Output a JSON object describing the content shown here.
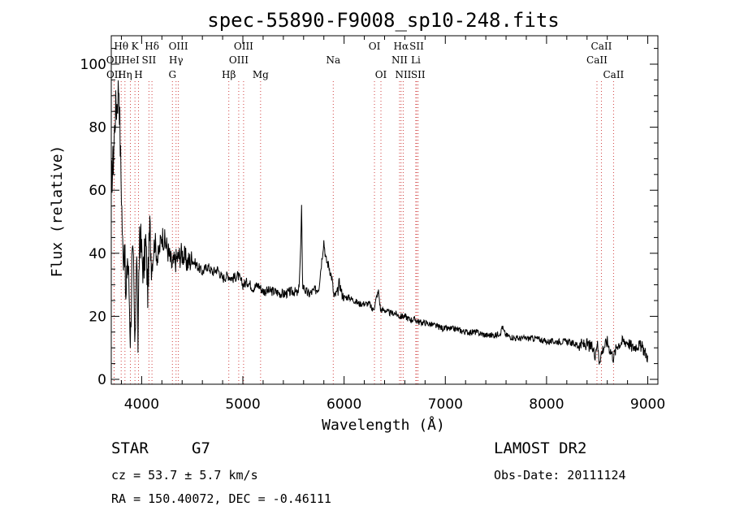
{
  "chart_data": {
    "type": "line",
    "title": "spec-55890-F9008_sp10-248.fits",
    "xlabel": "Wavelength (Å)",
    "ylabel": "Flux (relative)",
    "xlim": [
      3700,
      9100
    ],
    "ylim": [
      0,
      110
    ],
    "xticks": [
      4000,
      5000,
      6000,
      7000,
      8000,
      9000
    ],
    "yticks": [
      0,
      20,
      40,
      60,
      80,
      100
    ],
    "spectral_lines": [
      {
        "label": "Hθ",
        "wavelength": 3798,
        "row": 1
      },
      {
        "label": "OII",
        "wavelength": 3727,
        "row": 2
      },
      {
        "label": "OII",
        "wavelength": 3729,
        "row": 3
      },
      {
        "label": "Hη",
        "wavelength": 3835,
        "row": 3
      },
      {
        "label": "K",
        "wavelength": 3934,
        "row": 1
      },
      {
        "label": "HeI",
        "wavelength": 3889,
        "row": 2
      },
      {
        "label": "H",
        "wavelength": 3969,
        "row": 3
      },
      {
        "label": "SII",
        "wavelength": 4072,
        "row": 2
      },
      {
        "label": "Hδ",
        "wavelength": 4102,
        "row": 1
      },
      {
        "label": "OIII",
        "wavelength": 4363,
        "row": 1
      },
      {
        "label": "Hγ",
        "wavelength": 4340,
        "row": 2
      },
      {
        "label": "G",
        "wavelength": 4304,
        "row": 3
      },
      {
        "label": "Hβ",
        "wavelength": 4861,
        "row": 3
      },
      {
        "label": "OIII",
        "wavelength": 5007,
        "row": 1
      },
      {
        "label": "OIII",
        "wavelength": 4959,
        "row": 2
      },
      {
        "label": "Mg",
        "wavelength": 5175,
        "row": 3
      },
      {
        "label": "Na",
        "wavelength": 5893,
        "row": 2
      },
      {
        "label": "OI",
        "wavelength": 6300,
        "row": 1
      },
      {
        "label": "OI",
        "wavelength": 6364,
        "row": 3
      },
      {
        "label": "Hα",
        "wavelength": 6563,
        "row": 1
      },
      {
        "label": "NII",
        "wavelength": 6548,
        "row": 2
      },
      {
        "label": "NII",
        "wavelength": 6584,
        "row": 3
      },
      {
        "label": "SII",
        "wavelength": 6717,
        "row": 1
      },
      {
        "label": "Li",
        "wavelength": 6708,
        "row": 2
      },
      {
        "label": "SII",
        "wavelength": 6731,
        "row": 3
      },
      {
        "label": "CaII",
        "wavelength": 8542,
        "row": 1
      },
      {
        "label": "CaII",
        "wavelength": 8498,
        "row": 2
      },
      {
        "label": "CaII",
        "wavelength": 8662,
        "row": 3
      }
    ],
    "series": [
      {
        "name": "flux",
        "anchors": [
          [
            3700,
            62
          ],
          [
            3720,
            70
          ],
          [
            3740,
            85
          ],
          [
            3760,
            88
          ],
          [
            3775,
            95
          ],
          [
            3790,
            72
          ],
          [
            3800,
            60
          ],
          [
            3815,
            38
          ],
          [
            3830,
            45
          ],
          [
            3845,
            22
          ],
          [
            3860,
            40
          ],
          [
            3875,
            30
          ],
          [
            3890,
            12
          ],
          [
            3905,
            38
          ],
          [
            3920,
            35
          ],
          [
            3935,
            6
          ],
          [
            3950,
            46
          ],
          [
            3965,
            10
          ],
          [
            3980,
            48
          ],
          [
            4000,
            40
          ],
          [
            4020,
            34
          ],
          [
            4040,
            44
          ],
          [
            4060,
            28
          ],
          [
            4080,
            48
          ],
          [
            4100,
            36
          ],
          [
            4130,
            44
          ],
          [
            4160,
            38
          ],
          [
            4200,
            46
          ],
          [
            4250,
            42
          ],
          [
            4300,
            36
          ],
          [
            4340,
            38
          ],
          [
            4400,
            40
          ],
          [
            4450,
            37
          ],
          [
            4500,
            38
          ],
          [
            4550,
            36
          ],
          [
            4600,
            34
          ],
          [
            4650,
            36
          ],
          [
            4700,
            34
          ],
          [
            4750,
            35
          ],
          [
            4800,
            32
          ],
          [
            4850,
            33
          ],
          [
            4900,
            32
          ],
          [
            4950,
            33
          ],
          [
            5000,
            30
          ],
          [
            5050,
            31
          ],
          [
            5100,
            29
          ],
          [
            5150,
            30
          ],
          [
            5200,
            28
          ],
          [
            5300,
            28
          ],
          [
            5400,
            27
          ],
          [
            5500,
            28
          ],
          [
            5550,
            27
          ],
          [
            5570,
            40
          ],
          [
            5580,
            54
          ],
          [
            5590,
            30
          ],
          [
            5620,
            28
          ],
          [
            5650,
            27
          ],
          [
            5700,
            28
          ],
          [
            5750,
            29
          ],
          [
            5780,
            38
          ],
          [
            5800,
            44
          ],
          [
            5820,
            38
          ],
          [
            5850,
            36
          ],
          [
            5880,
            32
          ],
          [
            5900,
            26
          ],
          [
            5940,
            28
          ],
          [
            5950,
            31
          ],
          [
            5980,
            27
          ],
          [
            6000,
            26
          ],
          [
            6050,
            26
          ],
          [
            6100,
            25
          ],
          [
            6150,
            24
          ],
          [
            6200,
            24
          ],
          [
            6250,
            24
          ],
          [
            6280,
            22
          ],
          [
            6300,
            23
          ],
          [
            6320,
            26
          ],
          [
            6340,
            28
          ],
          [
            6360,
            22
          ],
          [
            6400,
            22
          ],
          [
            6450,
            21
          ],
          [
            6500,
            21
          ],
          [
            6550,
            20
          ],
          [
            6600,
            20
          ],
          [
            6650,
            19
          ],
          [
            6700,
            19
          ],
          [
            6750,
            18
          ],
          [
            6800,
            18
          ],
          [
            6900,
            17
          ],
          [
            7000,
            16
          ],
          [
            7100,
            16
          ],
          [
            7200,
            15
          ],
          [
            7300,
            15
          ],
          [
            7400,
            14
          ],
          [
            7500,
            14
          ],
          [
            7550,
            15
          ],
          [
            7560,
            17
          ],
          [
            7580,
            15
          ],
          [
            7600,
            14
          ],
          [
            7700,
            13
          ],
          [
            7800,
            13
          ],
          [
            7900,
            13
          ],
          [
            8000,
            12
          ],
          [
            8100,
            12
          ],
          [
            8200,
            12
          ],
          [
            8300,
            11
          ],
          [
            8400,
            11
          ],
          [
            8450,
            10
          ],
          [
            8480,
            8
          ],
          [
            8500,
            12
          ],
          [
            8520,
            6
          ],
          [
            8560,
            10
          ],
          [
            8600,
            12
          ],
          [
            8620,
            10
          ],
          [
            8660,
            7
          ],
          [
            8700,
            11
          ],
          [
            8750,
            12
          ],
          [
            8800,
            12
          ],
          [
            8850,
            10
          ],
          [
            8900,
            11
          ],
          [
            8950,
            10
          ],
          [
            9000,
            7
          ]
        ]
      }
    ]
  },
  "info": {
    "object_class": "STAR",
    "subclass": "G7",
    "survey": "LAMOST DR2",
    "redshift": "cz = 53.7 ± 5.7 km/s",
    "obs_date": "Obs-Date: 20111124",
    "coords": "RA = 150.40072, DEC =  -0.46111"
  }
}
